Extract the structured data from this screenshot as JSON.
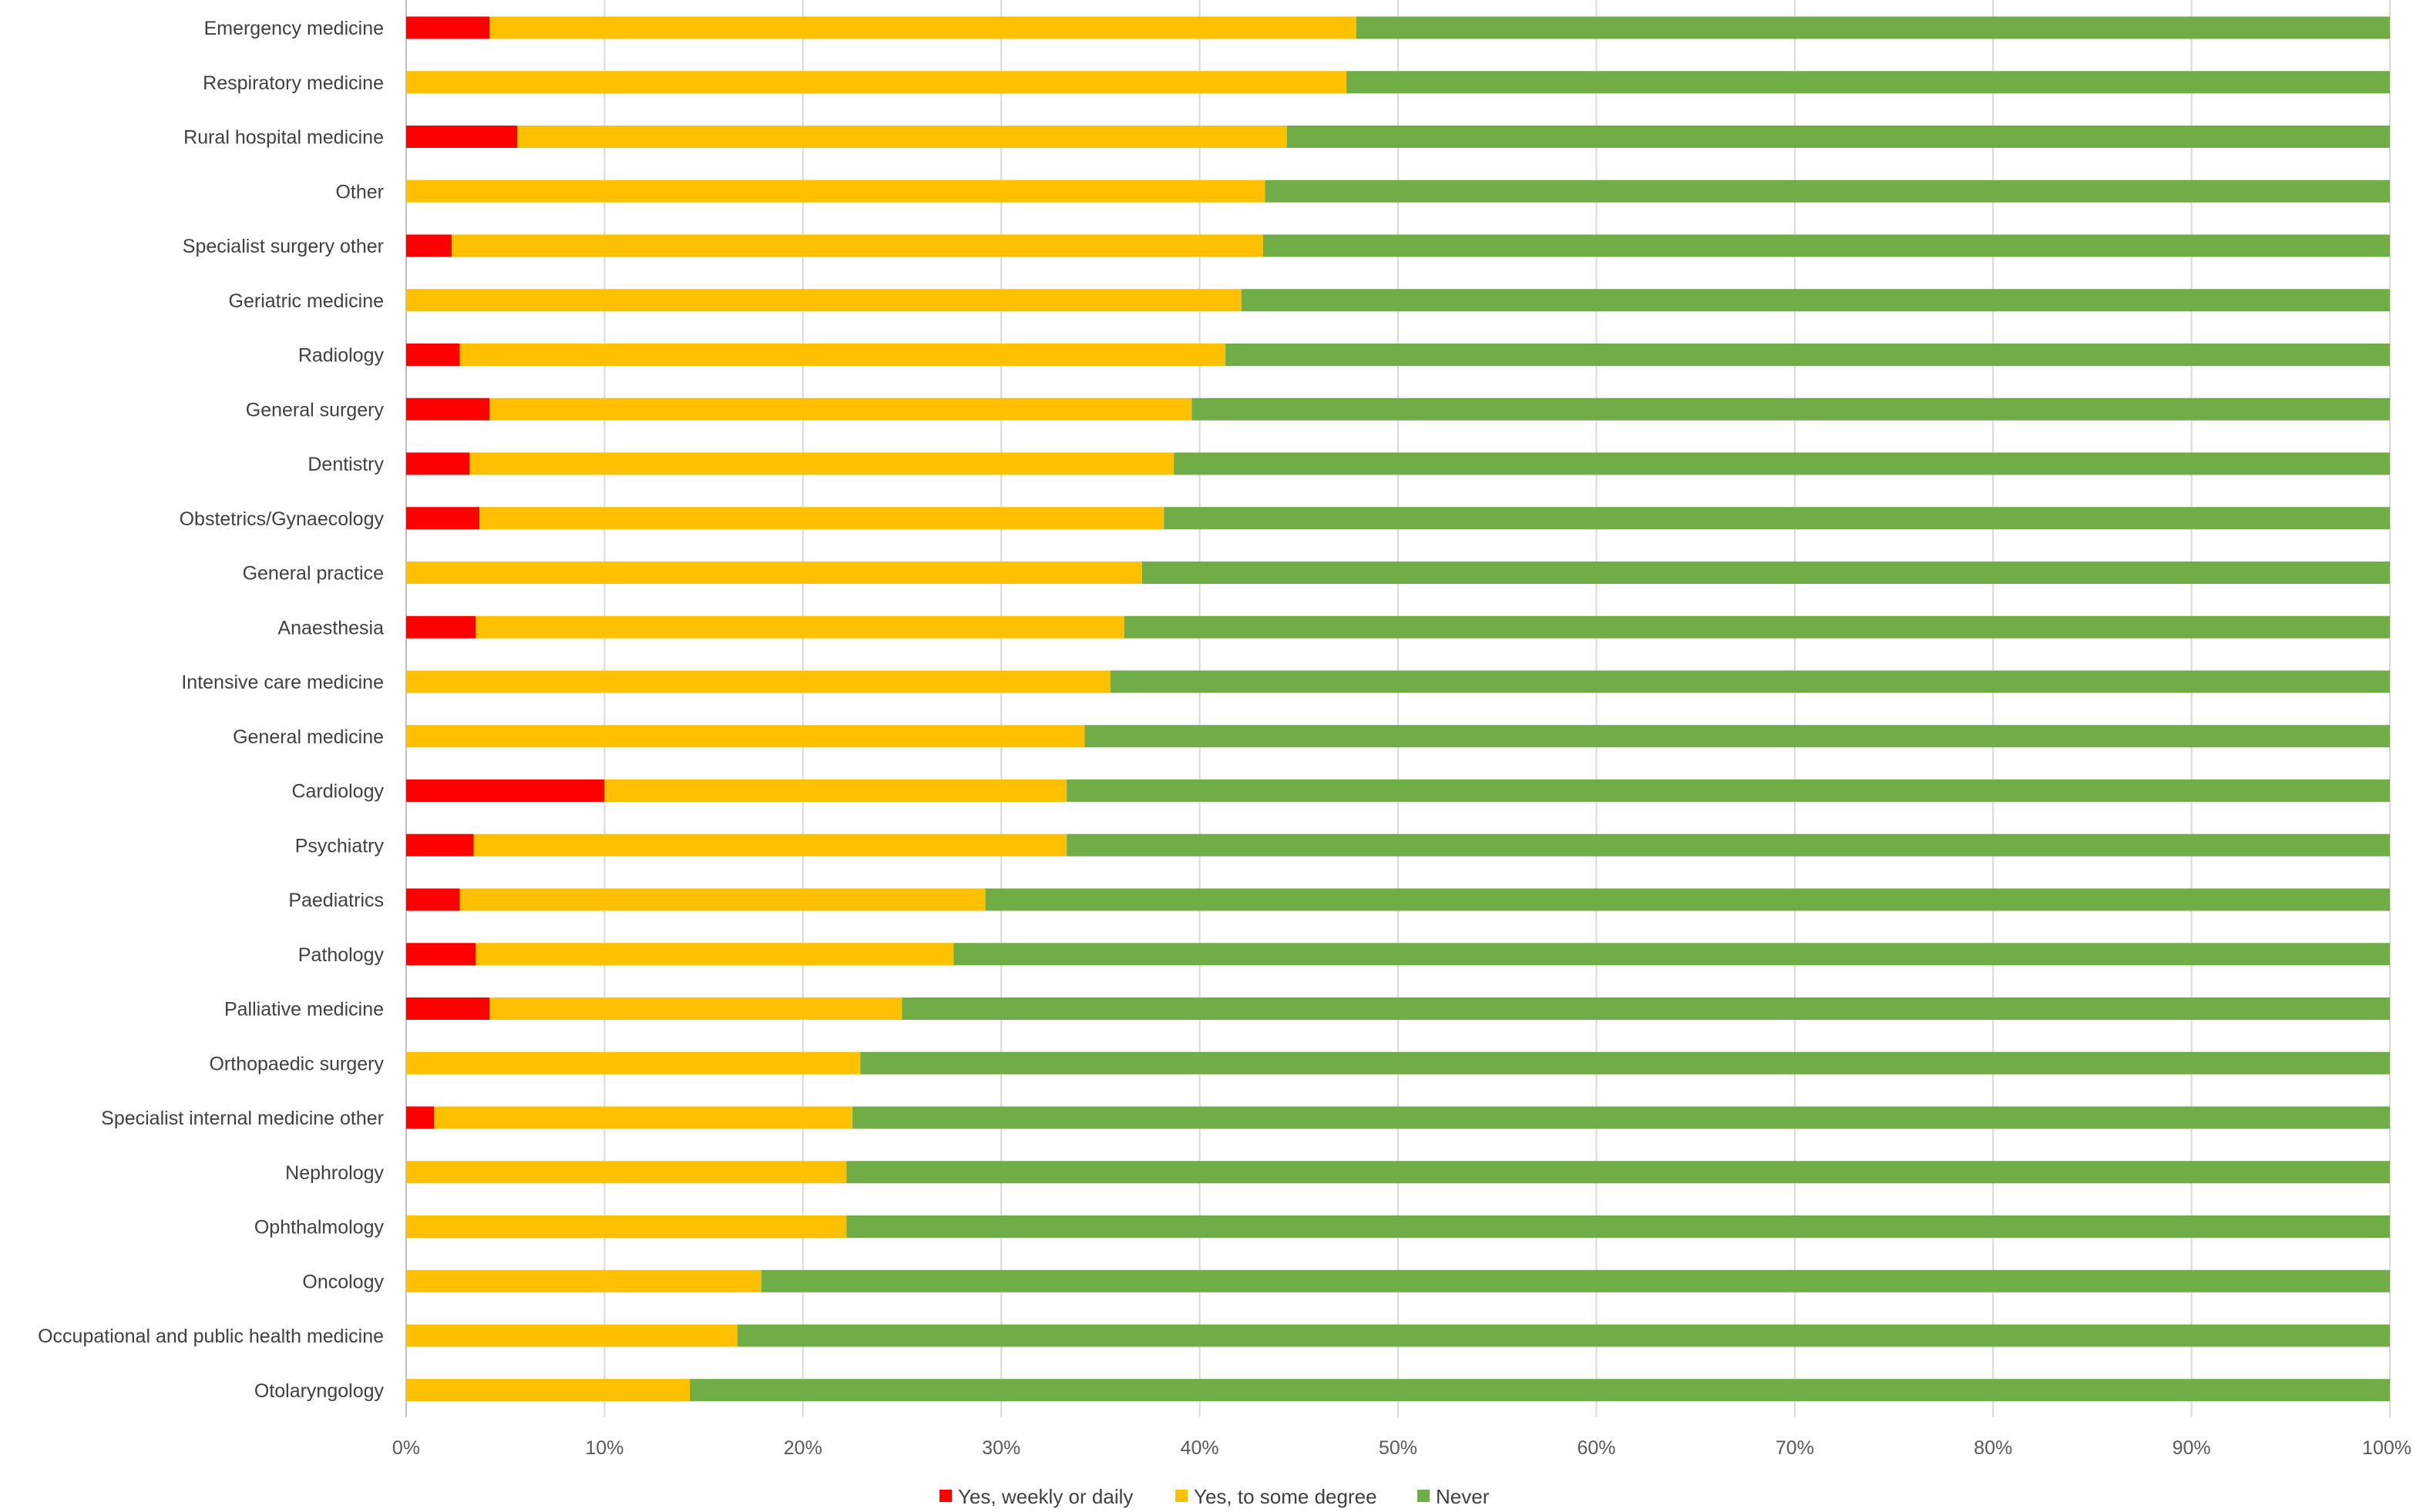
{
  "chart_data": {
    "type": "bar",
    "orientation": "horizontal",
    "stacked": true,
    "title": "",
    "xlabel": "",
    "ylabel": "",
    "xlim": [
      0,
      100
    ],
    "x_ticks": [
      "0%",
      "10%",
      "20%",
      "30%",
      "40%",
      "50%",
      "60%",
      "70%",
      "80%",
      "90%",
      "100%"
    ],
    "grid": true,
    "legend_position": "bottom",
    "categories": [
      "Emergency medicine",
      "Respiratory medicine",
      "Rural hospital medicine",
      "Other",
      "Specialist surgery other",
      "Geriatric medicine",
      "Radiology",
      "General surgery",
      "Dentistry",
      "Obstetrics/Gynaecology",
      "General practice",
      "Anaesthesia",
      "Intensive care medicine",
      "General medicine",
      "Cardiology",
      "Psychiatry",
      "Paediatrics",
      "Pathology",
      "Palliative medicine",
      "Orthopaedic surgery",
      "Specialist internal medicine other",
      "Nephrology",
      "Ophthalmology",
      "Oncology",
      "Occupational and public health medicine",
      "Otolaryngology"
    ],
    "series": [
      {
        "name": "Yes, weekly or daily",
        "color": "#ff0000",
        "values": [
          4.2,
          0,
          5.6,
          0,
          2.3,
          0,
          2.7,
          4.2,
          3.2,
          3.7,
          0,
          3.5,
          0,
          0,
          10.0,
          3.4,
          2.7,
          3.5,
          4.2,
          0,
          1.4,
          0,
          0,
          0,
          0,
          0
        ]
      },
      {
        "name": "Yes, to some degree",
        "color": "#ffc000",
        "values": [
          43.7,
          47.4,
          38.8,
          43.3,
          40.9,
          42.1,
          38.6,
          35.4,
          35.5,
          34.5,
          37.1,
          32.7,
          35.5,
          34.2,
          23.3,
          29.9,
          26.5,
          24.1,
          20.8,
          22.9,
          21.1,
          22.2,
          22.2,
          17.9,
          16.7,
          14.3
        ]
      },
      {
        "name": "Never",
        "color": "#70ad47",
        "values": [
          52.1,
          52.6,
          55.6,
          56.7,
          56.8,
          57.9,
          58.7,
          60.4,
          61.3,
          61.8,
          62.9,
          63.8,
          64.5,
          65.8,
          66.7,
          66.7,
          70.8,
          72.4,
          75.0,
          77.1,
          77.5,
          77.8,
          77.8,
          82.1,
          83.3,
          85.7
        ]
      }
    ]
  }
}
